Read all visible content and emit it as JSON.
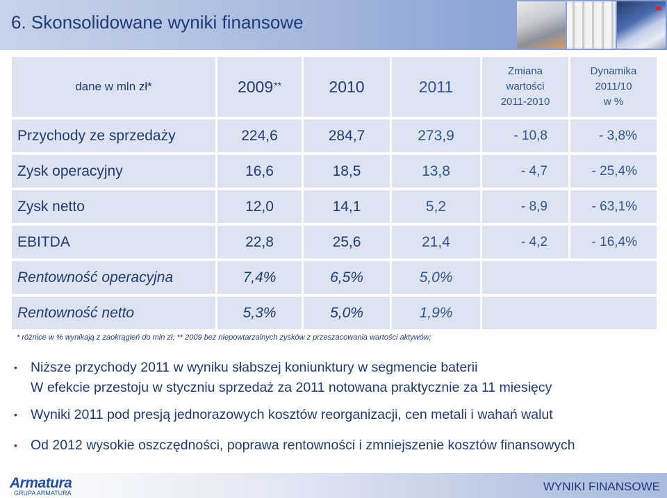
{
  "header": {
    "title": "6. Skonsolidowane wyniki finansowe"
  },
  "table": {
    "header": {
      "label": "dane w mln zł*",
      "years": [
        {
          "year": "2009",
          "mark": "**"
        },
        {
          "year": "2010",
          "mark": ""
        },
        {
          "year": "2011",
          "mark": ""
        }
      ],
      "change_lines": [
        "Zmiana",
        "wartości",
        "2011-2010"
      ],
      "dynamics_lines": [
        "Dynamika",
        "2011/10",
        "w %"
      ]
    },
    "rows": [
      {
        "label": "Przychody ze sprzedaży",
        "v2009": "224,6",
        "v2010": "284,7",
        "v2011": "273,9",
        "change": "- 10,8",
        "dynamics": "- 3,8%"
      },
      {
        "label": "Zysk operacyjny",
        "v2009": "16,6",
        "v2010": "18,5",
        "v2011": "13,8",
        "change": "- 4,7",
        "dynamics": "- 25,4%"
      },
      {
        "label": "Zysk netto",
        "v2009": "12,0",
        "v2010": "14,1",
        "v2011": "5,2",
        "change": "- 8,9",
        "dynamics": "- 63,1%"
      },
      {
        "label": "EBITDA",
        "v2009": "22,8",
        "v2010": "25,6",
        "v2011": "21,4",
        "change": "- 4,2",
        "dynamics": "- 16,4%"
      },
      {
        "label": "Rentowność operacyjna",
        "v2009": "7,4%",
        "v2010": "6,5%",
        "v2011": "5,0%",
        "change": "",
        "dynamics": ""
      },
      {
        "label": "Rentowność netto",
        "v2009": "5,3%",
        "v2010": "5,0%",
        "v2011": "1,9%",
        "change": "",
        "dynamics": ""
      }
    ]
  },
  "note": "* różnice w % wynikają z zaokrągleń do mln zł; ** 2009 bez niepowtarzalnych zysków z przeszacowania wartości aktywów;",
  "bullets": [
    {
      "lines": [
        "Niższe przychody 2011 w wyniku słabszej koniunktury w segmencie baterii",
        "W efekcie przestoju w styczniu sprzedaż za 2011 notowana praktycznie za 11 miesięcy"
      ]
    },
    {
      "lines": [
        "Wyniki 2011 pod presją jednorazowych kosztów reorganizacji, cen metali i wahań walut"
      ]
    },
    {
      "lines": [
        "Od 2012 wysokie oszczędności, poprawa rentowności i zmniejszenie kosztów finansowych"
      ]
    }
  ],
  "footer": {
    "logo": "Armatura",
    "logo_sub": "GRUPA ARMATURA",
    "title": "WYNIKI FINANSOWE"
  },
  "colors": {
    "text_primary": "#1f3a78",
    "accent": "#2f5596",
    "cell_bg": "#dde3f1",
    "bullet": "#c0182b"
  }
}
